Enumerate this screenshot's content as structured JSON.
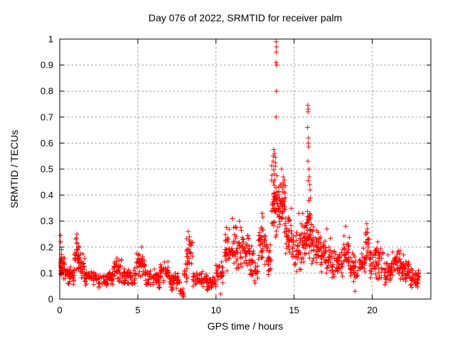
{
  "title": "Day 076 of 2022, SRMTID for receiver palm",
  "chart_data": {
    "type": "scatter",
    "title": "Day 076 of 2022, SRMTID for receiver palm",
    "xlabel": "GPS time / hours",
    "ylabel": "SRMTID / TECUs",
    "xlim": [
      0,
      23.75
    ],
    "ylim": [
      0,
      1
    ],
    "xticks": [
      0,
      5,
      10,
      15,
      20
    ],
    "xtick_labels": [
      "0",
      "5",
      "10",
      "15",
      "20"
    ],
    "yticks": [
      0,
      0.1,
      0.2,
      0.3,
      0.4,
      0.5,
      0.6,
      0.7,
      0.8,
      0.9,
      1
    ],
    "ytick_labels": [
      "0",
      "0.1",
      "0.2",
      "0.3",
      "0.4",
      "0.5",
      "0.6",
      "0.7",
      "0.8",
      "0.9",
      "1"
    ],
    "grid": true,
    "legend": "none",
    "marker": "plus",
    "marker_color": "#ff0000",
    "grid_color": "#999999",
    "axis_color": "#000000",
    "background_color": "#ffffff",
    "series_name": "SRMTID",
    "notable_points": [
      [
        0.05,
        0.245
      ],
      [
        0.07,
        0.22
      ],
      [
        1.1,
        0.25
      ],
      [
        1.07,
        0.235
      ],
      [
        5.25,
        0.2
      ],
      [
        7.88,
        0.012
      ],
      [
        7.9,
        0.018
      ],
      [
        7.92,
        0.012
      ],
      [
        7.9,
        0.008
      ],
      [
        8.22,
        0.26
      ],
      [
        8.3,
        0.24
      ],
      [
        10.3,
        0.02
      ],
      [
        11.05,
        0.31
      ],
      [
        11.5,
        0.3
      ],
      [
        12.95,
        0.33
      ],
      [
        13.0,
        0.315
      ],
      [
        13.65,
        0.53
      ],
      [
        13.7,
        0.575
      ],
      [
        13.75,
        0.56
      ],
      [
        13.8,
        0.545
      ],
      [
        13.84,
        0.91
      ],
      [
        13.85,
        0.99
      ],
      [
        13.85,
        0.7
      ],
      [
        13.86,
        0.95
      ],
      [
        13.87,
        0.97
      ],
      [
        13.87,
        0.8
      ],
      [
        13.88,
        0.9
      ],
      [
        14.2,
        0.5
      ],
      [
        14.3,
        0.47
      ],
      [
        15.3,
        0.33
      ],
      [
        15.55,
        0.33
      ],
      [
        15.86,
        0.66
      ],
      [
        15.88,
        0.745
      ],
      [
        15.88,
        0.53
      ],
      [
        15.89,
        0.72
      ],
      [
        15.9,
        0.73
      ],
      [
        15.9,
        0.6
      ],
      [
        15.91,
        0.455
      ],
      [
        15.92,
        0.62
      ],
      [
        15.93,
        0.585
      ],
      [
        15.95,
        0.5
      ],
      [
        15.97,
        0.47
      ],
      [
        16.0,
        0.44
      ],
      [
        16.02,
        0.42
      ],
      [
        17.1,
        0.27
      ],
      [
        18.3,
        0.28
      ],
      [
        18.9,
        0.03
      ],
      [
        19.62,
        0.255
      ],
      [
        19.65,
        0.29
      ],
      [
        19.68,
        0.27
      ],
      [
        20.35,
        0.22
      ],
      [
        21.0,
        0.17
      ],
      [
        22.0,
        0.17
      ]
    ],
    "cloud_bands": {
      "format": "[x_start_hours, x_end_hours, y_min_TECUs, y_max_TECUs, approx_point_count] — dense scatter cloud envelope read from the plot",
      "bands": [
        [
          0.0,
          0.12,
          0.1,
          0.22,
          8
        ],
        [
          0.02,
          0.35,
          0.07,
          0.17,
          28
        ],
        [
          0.35,
          0.95,
          0.05,
          0.13,
          40
        ],
        [
          0.95,
          1.25,
          0.1,
          0.24,
          30
        ],
        [
          1.25,
          1.6,
          0.07,
          0.18,
          24
        ],
        [
          1.6,
          2.1,
          0.05,
          0.12,
          30
        ],
        [
          2.1,
          3.4,
          0.04,
          0.11,
          70
        ],
        [
          3.4,
          4.0,
          0.06,
          0.17,
          40
        ],
        [
          4.0,
          4.9,
          0.05,
          0.13,
          50
        ],
        [
          4.9,
          5.45,
          0.07,
          0.19,
          35
        ],
        [
          5.45,
          6.4,
          0.04,
          0.12,
          50
        ],
        [
          6.4,
          6.95,
          0.06,
          0.15,
          35
        ],
        [
          6.95,
          7.7,
          0.03,
          0.11,
          45
        ],
        [
          7.7,
          7.95,
          0.01,
          0.05,
          10
        ],
        [
          7.95,
          8.15,
          0.05,
          0.15,
          12
        ],
        [
          8.1,
          8.5,
          0.1,
          0.24,
          25
        ],
        [
          8.5,
          9.4,
          0.04,
          0.11,
          50
        ],
        [
          9.4,
          10.0,
          0.03,
          0.1,
          35
        ],
        [
          10.0,
          10.55,
          0.06,
          0.15,
          30
        ],
        [
          10.55,
          11.2,
          0.1,
          0.3,
          45
        ],
        [
          11.2,
          12.1,
          0.1,
          0.29,
          60
        ],
        [
          12.1,
          12.45,
          0.08,
          0.22,
          25
        ],
        [
          12.45,
          12.7,
          0.05,
          0.15,
          15
        ],
        [
          12.7,
          13.25,
          0.1,
          0.32,
          40
        ],
        [
          13.25,
          13.55,
          0.07,
          0.22,
          20
        ],
        [
          13.55,
          13.95,
          0.2,
          0.57,
          55
        ],
        [
          13.95,
          14.45,
          0.24,
          0.48,
          55
        ],
        [
          14.45,
          14.85,
          0.14,
          0.35,
          35
        ],
        [
          14.85,
          15.45,
          0.1,
          0.3,
          45
        ],
        [
          15.45,
          15.8,
          0.12,
          0.32,
          30
        ],
        [
          15.8,
          16.1,
          0.15,
          0.4,
          40
        ],
        [
          16.1,
          16.65,
          0.1,
          0.3,
          40
        ],
        [
          16.65,
          17.35,
          0.08,
          0.26,
          50
        ],
        [
          17.35,
          18.1,
          0.07,
          0.2,
          50
        ],
        [
          18.1,
          18.55,
          0.1,
          0.27,
          30
        ],
        [
          18.55,
          19.1,
          0.05,
          0.18,
          35
        ],
        [
          19.1,
          19.55,
          0.08,
          0.2,
          25
        ],
        [
          19.55,
          19.8,
          0.14,
          0.28,
          18
        ],
        [
          19.8,
          20.7,
          0.07,
          0.21,
          55
        ],
        [
          20.7,
          21.3,
          0.05,
          0.16,
          40
        ],
        [
          21.3,
          21.8,
          0.08,
          0.2,
          35
        ],
        [
          21.8,
          22.4,
          0.05,
          0.16,
          40
        ],
        [
          22.4,
          23.0,
          0.04,
          0.12,
          40
        ]
      ]
    }
  }
}
